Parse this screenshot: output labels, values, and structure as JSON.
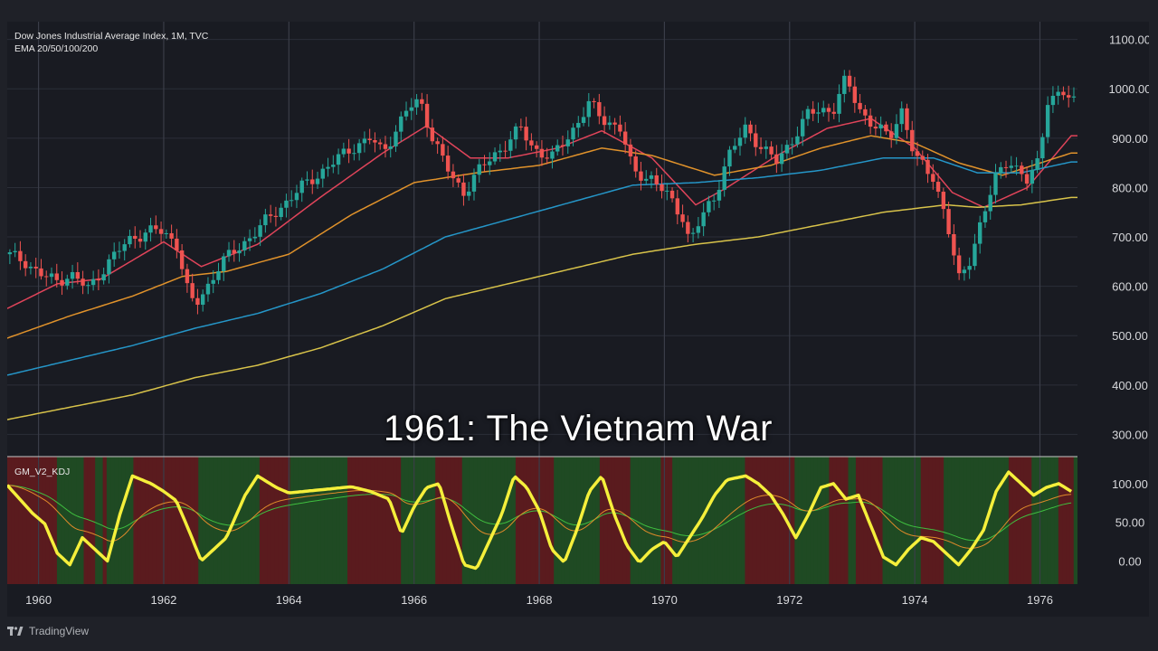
{
  "header": {
    "title": "Dow Jones Industrial Average Index, 1M, TVC",
    "indicator_label": "EMA 20/50/100/200",
    "oscillator_label": "GM_V2_KDJ"
  },
  "caption": "1961: The Vietnam War",
  "footer": {
    "brand": "TradingView",
    "logo_icon": "tradingview-logo-icon"
  },
  "colors": {
    "background": "#191b22",
    "up": "#26a69a",
    "down": "#ef5350",
    "ema20": "#e0445a",
    "ema50": "#e0922b",
    "ema100": "#2596c8",
    "ema200": "#d8c34a",
    "k_line": "#f5ef3b",
    "d_line": "#e08a2a",
    "j_line": "#3fbf3f",
    "bull_zone": "#1f4a23",
    "bear_zone": "#5a1b1e"
  },
  "chart_data": [
    {
      "type": "candlestick",
      "title": "Dow Jones Industrial Average Index, 1M, TVC",
      "x_axis": {
        "type": "time",
        "range": [
          1959.5,
          1976.6
        ],
        "ticks": [
          "1960",
          "1962",
          "1964",
          "1966",
          "1968",
          "1970",
          "1972",
          "1974",
          "1976"
        ]
      },
      "y_axis": {
        "range": [
          255,
          1125
        ],
        "ticks": [
          "300.00",
          "400.00",
          "500.00",
          "600.00",
          "700.00",
          "800.00",
          "900.00",
          "1000.00",
          "1100.00"
        ]
      },
      "grid": true,
      "close_path": [
        [
          1959.5,
          665
        ],
        [
          1959.8,
          650
        ],
        [
          1960.0,
          625
        ],
        [
          1960.3,
          610
        ],
        [
          1960.5,
          625
        ],
        [
          1960.8,
          595
        ],
        [
          1961.0,
          630
        ],
        [
          1961.3,
          675
        ],
        [
          1961.5,
          700
        ],
        [
          1961.9,
          715
        ],
        [
          1962.2,
          690
        ],
        [
          1962.4,
          580
        ],
        [
          1962.5,
          560
        ],
        [
          1962.7,
          600
        ],
        [
          1962.9,
          645
        ],
        [
          1963.3,
          690
        ],
        [
          1963.7,
          740
        ],
        [
          1964.2,
          800
        ],
        [
          1964.6,
          840
        ],
        [
          1965.0,
          880
        ],
        [
          1965.3,
          900
        ],
        [
          1965.5,
          870
        ],
        [
          1965.9,
          960
        ],
        [
          1966.1,
          975
        ],
        [
          1966.3,
          900
        ],
        [
          1966.6,
          820
        ],
        [
          1966.8,
          790
        ],
        [
          1967.0,
          830
        ],
        [
          1967.4,
          880
        ],
        [
          1967.7,
          920
        ],
        [
          1967.9,
          880
        ],
        [
          1968.2,
          860
        ],
        [
          1968.5,
          910
        ],
        [
          1968.8,
          970
        ],
        [
          1969.0,
          940
        ],
        [
          1969.3,
          920
        ],
        [
          1969.5,
          830
        ],
        [
          1969.8,
          820
        ],
        [
          1970.0,
          790
        ],
        [
          1970.3,
          740
        ],
        [
          1970.4,
          690
        ],
        [
          1970.6,
          740
        ],
        [
          1970.8,
          780
        ],
        [
          1971.0,
          860
        ],
        [
          1971.3,
          920
        ],
        [
          1971.5,
          890
        ],
        [
          1971.8,
          850
        ],
        [
          1972.0,
          890
        ],
        [
          1972.3,
          950
        ],
        [
          1972.7,
          960
        ],
        [
          1972.9,
          1020
        ],
        [
          1973.1,
          960
        ],
        [
          1973.4,
          920
        ],
        [
          1973.6,
          900
        ],
        [
          1973.8,
          960
        ],
        [
          1974.0,
          860
        ],
        [
          1974.3,
          820
        ],
        [
          1974.5,
          740
        ],
        [
          1974.7,
          610
        ],
        [
          1974.9,
          660
        ],
        [
          1975.0,
          710
        ],
        [
          1975.3,
          820
        ],
        [
          1975.5,
          860
        ],
        [
          1975.8,
          810
        ],
        [
          1976.0,
          860
        ],
        [
          1976.1,
          980
        ],
        [
          1976.4,
          990
        ],
        [
          1976.5,
          975
        ]
      ],
      "ema_series": [
        {
          "name": "EMA 20",
          "points": [
            [
              1959.5,
              555
            ],
            [
              1960.3,
              605
            ],
            [
              1961.0,
              615
            ],
            [
              1962.0,
              690
            ],
            [
              1962.6,
              640
            ],
            [
              1963.5,
              685
            ],
            [
              1964.5,
              780
            ],
            [
              1965.5,
              870
            ],
            [
              1966.2,
              925
            ],
            [
              1966.9,
              860
            ],
            [
              1967.5,
              860
            ],
            [
              1968.3,
              880
            ],
            [
              1969.0,
              915
            ],
            [
              1969.8,
              860
            ],
            [
              1970.5,
              765
            ],
            [
              1971.0,
              800
            ],
            [
              1971.8,
              865
            ],
            [
              1972.6,
              920
            ],
            [
              1973.3,
              940
            ],
            [
              1974.0,
              880
            ],
            [
              1974.6,
              790
            ],
            [
              1975.1,
              760
            ],
            [
              1975.8,
              800
            ],
            [
              1976.5,
              905
            ]
          ]
        },
        {
          "name": "EMA 50",
          "points": [
            [
              1959.5,
              495
            ],
            [
              1960.5,
              540
            ],
            [
              1961.5,
              580
            ],
            [
              1962.3,
              620
            ],
            [
              1963.0,
              630
            ],
            [
              1964.0,
              665
            ],
            [
              1965.0,
              745
            ],
            [
              1966.0,
              810
            ],
            [
              1967.0,
              830
            ],
            [
              1968.0,
              845
            ],
            [
              1969.0,
              880
            ],
            [
              1969.8,
              865
            ],
            [
              1970.8,
              825
            ],
            [
              1971.7,
              845
            ],
            [
              1972.5,
              880
            ],
            [
              1973.3,
              905
            ],
            [
              1974.0,
              890
            ],
            [
              1974.7,
              850
            ],
            [
              1975.4,
              825
            ],
            [
              1976.5,
              870
            ]
          ]
        },
        {
          "name": "EMA 100",
          "points": [
            [
              1959.5,
              420
            ],
            [
              1960.5,
              450
            ],
            [
              1961.5,
              480
            ],
            [
              1962.5,
              515
            ],
            [
              1963.5,
              545
            ],
            [
              1964.5,
              585
            ],
            [
              1965.5,
              635
            ],
            [
              1966.5,
              700
            ],
            [
              1967.5,
              735
            ],
            [
              1968.5,
              770
            ],
            [
              1969.5,
              805
            ],
            [
              1970.5,
              810
            ],
            [
              1971.5,
              820
            ],
            [
              1972.5,
              835
            ],
            [
              1973.5,
              860
            ],
            [
              1974.3,
              860
            ],
            [
              1975.0,
              830
            ],
            [
              1975.7,
              830
            ],
            [
              1976.5,
              852
            ]
          ]
        },
        {
          "name": "EMA 200",
          "points": [
            [
              1959.5,
              330
            ],
            [
              1960.5,
              355
            ],
            [
              1961.5,
              380
            ],
            [
              1962.5,
              415
            ],
            [
              1963.5,
              440
            ],
            [
              1964.5,
              475
            ],
            [
              1965.5,
              520
            ],
            [
              1966.5,
              575
            ],
            [
              1967.5,
              605
            ],
            [
              1968.5,
              635
            ],
            [
              1969.5,
              665
            ],
            [
              1970.5,
              685
            ],
            [
              1971.5,
              700
            ],
            [
              1972.5,
              725
            ],
            [
              1973.5,
              750
            ],
            [
              1974.5,
              765
            ],
            [
              1975.0,
              760
            ],
            [
              1975.7,
              765
            ],
            [
              1976.5,
              780
            ]
          ]
        }
      ]
    },
    {
      "type": "line",
      "title": "GM_V2_KDJ",
      "y_axis": {
        "range": [
          -30,
          135
        ],
        "ticks": [
          "0.00",
          "50.00",
          "100.00"
        ]
      },
      "series": [
        {
          "name": "K",
          "points": [
            [
              1959.5,
              98
            ],
            [
              1959.7,
              80
            ],
            [
              1959.9,
              62
            ],
            [
              1960.1,
              48
            ],
            [
              1960.3,
              10
            ],
            [
              1960.5,
              -5
            ],
            [
              1960.7,
              30
            ],
            [
              1960.9,
              15
            ],
            [
              1961.1,
              0
            ],
            [
              1961.3,
              60
            ],
            [
              1961.5,
              110
            ],
            [
              1961.8,
              100
            ],
            [
              1962.0,
              90
            ],
            [
              1962.2,
              78
            ],
            [
              1962.4,
              40
            ],
            [
              1962.6,
              0
            ],
            [
              1962.8,
              15
            ],
            [
              1963.0,
              30
            ],
            [
              1963.3,
              85
            ],
            [
              1963.5,
              110
            ],
            [
              1963.8,
              95
            ],
            [
              1964.0,
              88
            ],
            [
              1964.5,
              92
            ],
            [
              1965.0,
              96
            ],
            [
              1965.3,
              90
            ],
            [
              1965.6,
              80
            ],
            [
              1965.8,
              35
            ],
            [
              1966.0,
              70
            ],
            [
              1966.2,
              95
            ],
            [
              1966.4,
              100
            ],
            [
              1966.6,
              45
            ],
            [
              1966.8,
              -5
            ],
            [
              1967.0,
              -10
            ],
            [
              1967.2,
              25
            ],
            [
              1967.4,
              60
            ],
            [
              1967.6,
              110
            ],
            [
              1967.8,
              95
            ],
            [
              1968.0,
              65
            ],
            [
              1968.2,
              15
            ],
            [
              1968.4,
              -2
            ],
            [
              1968.6,
              40
            ],
            [
              1968.8,
              90
            ],
            [
              1969.0,
              110
            ],
            [
              1969.2,
              60
            ],
            [
              1969.4,
              20
            ],
            [
              1969.6,
              -2
            ],
            [
              1969.8,
              15
            ],
            [
              1970.0,
              25
            ],
            [
              1970.2,
              5
            ],
            [
              1970.4,
              30
            ],
            [
              1970.6,
              55
            ],
            [
              1970.8,
              85
            ],
            [
              1971.0,
              105
            ],
            [
              1971.3,
              110
            ],
            [
              1971.5,
              100
            ],
            [
              1971.7,
              85
            ],
            [
              1971.9,
              60
            ],
            [
              1972.1,
              30
            ],
            [
              1972.3,
              60
            ],
            [
              1972.5,
              95
            ],
            [
              1972.7,
              100
            ],
            [
              1972.9,
              80
            ],
            [
              1973.1,
              85
            ],
            [
              1973.3,
              45
            ],
            [
              1973.5,
              5
            ],
            [
              1973.7,
              -5
            ],
            [
              1973.9,
              15
            ],
            [
              1974.1,
              30
            ],
            [
              1974.3,
              25
            ],
            [
              1974.5,
              10
            ],
            [
              1974.7,
              -5
            ],
            [
              1974.9,
              15
            ],
            [
              1975.1,
              40
            ],
            [
              1975.3,
              90
            ],
            [
              1975.5,
              115
            ],
            [
              1975.7,
              100
            ],
            [
              1975.9,
              85
            ],
            [
              1976.1,
              95
            ],
            [
              1976.3,
              100
            ],
            [
              1976.5,
              90
            ]
          ]
        }
      ]
    }
  ]
}
